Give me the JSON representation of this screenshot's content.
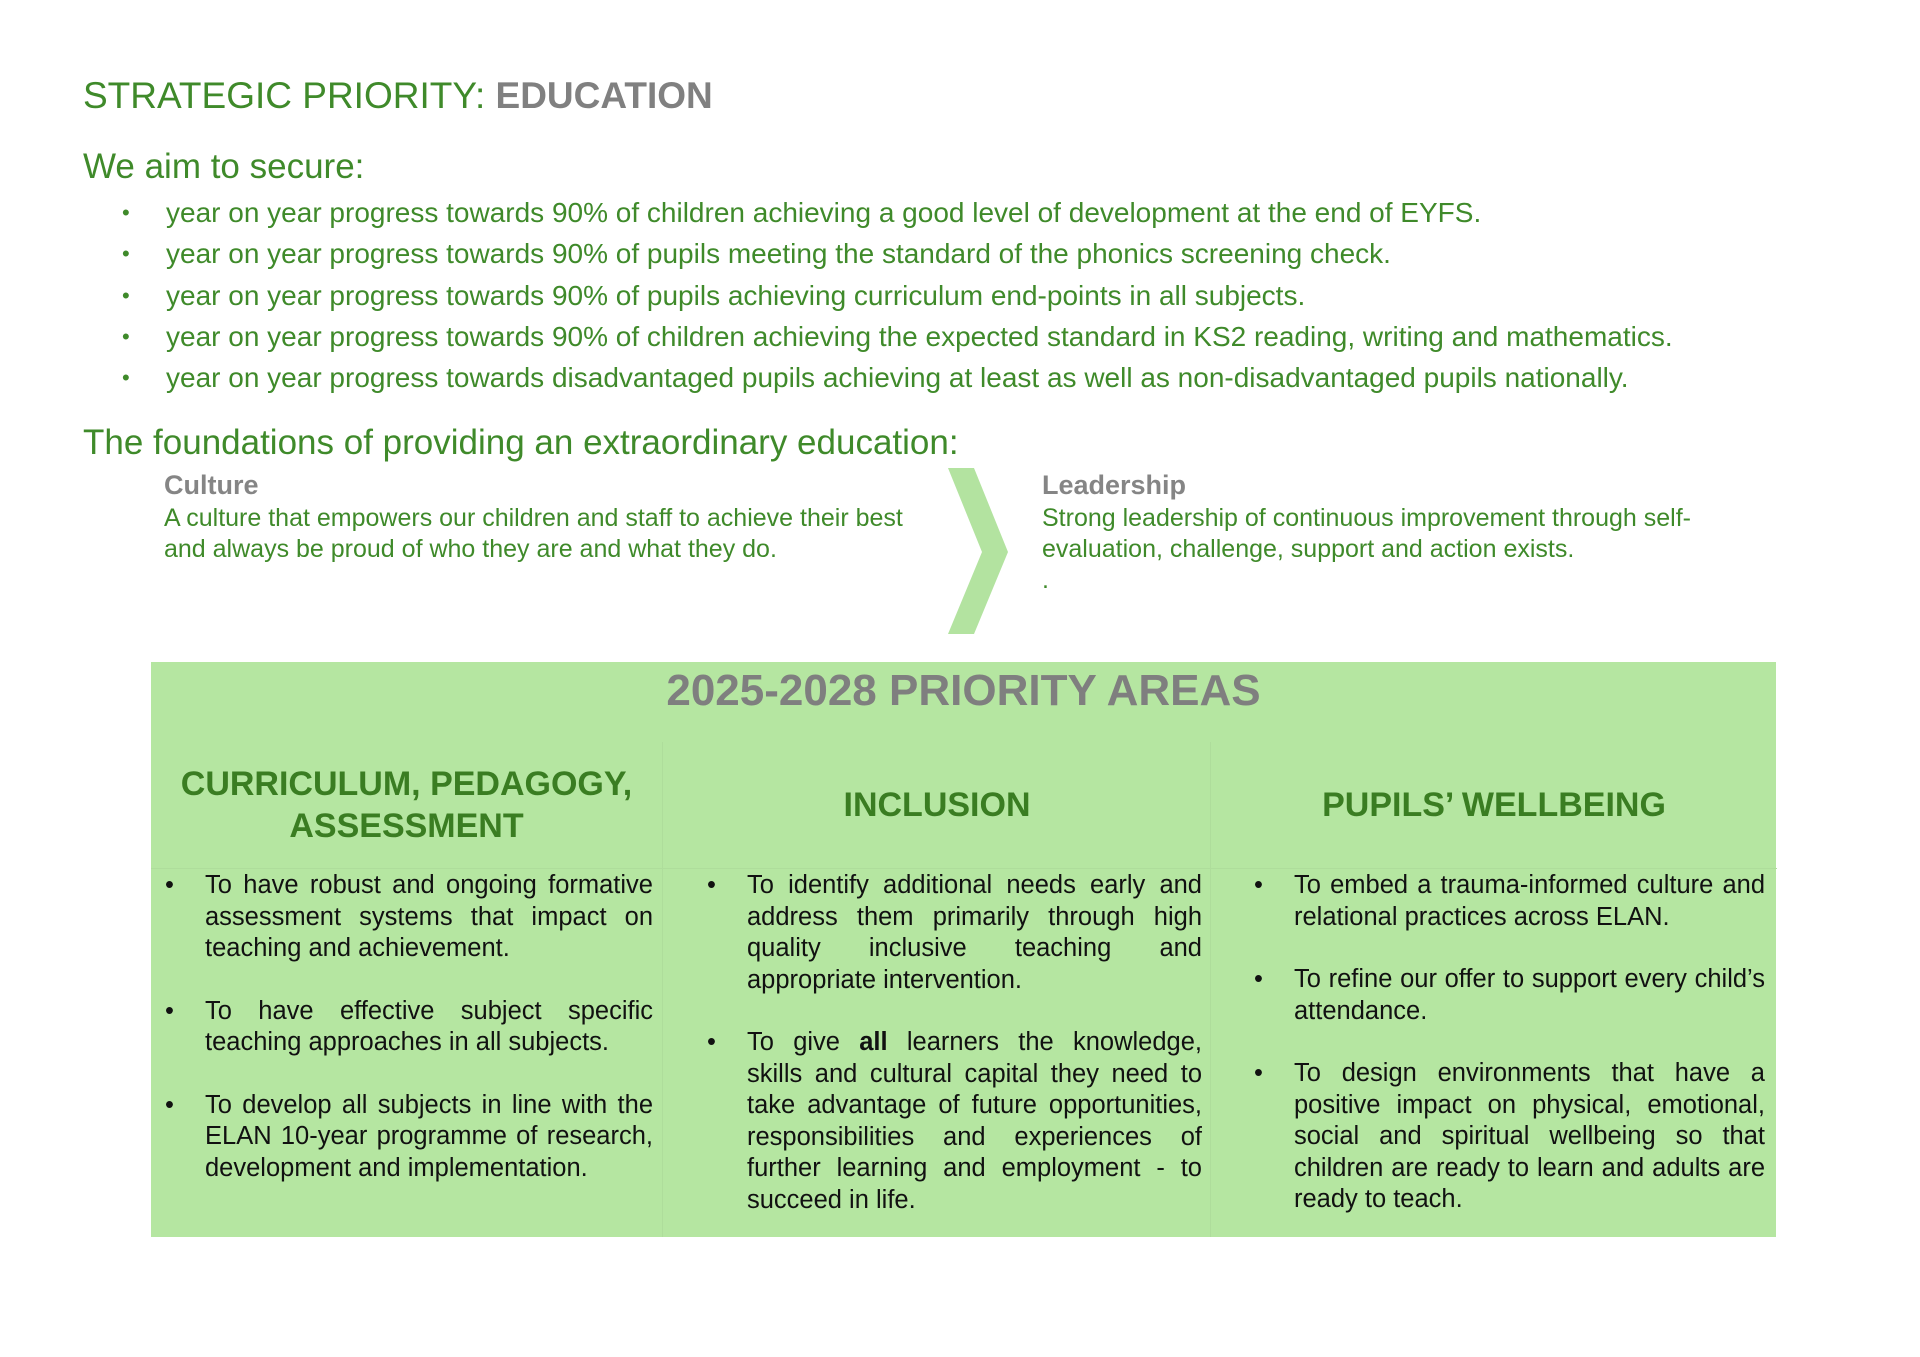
{
  "header": {
    "prefix": "STRATEGIC PRIORITY: ",
    "subject": "EDUCATION"
  },
  "aims": {
    "heading": "We aim to secure:",
    "items": [
      "year on year progress towards 90% of children achieving a good level of development at the end of EYFS.",
      "year on year progress towards 90% of pupils meeting the standard of the phonics screening check.",
      "year on year progress towards 90% of pupils achieving curriculum end-points in all subjects.",
      "year on year progress towards 90% of children achieving the expected standard in KS2 reading, writing and mathematics.",
      "year on year progress towards disadvantaged pupils achieving at least as well as non-disadvantaged pupils nationally."
    ]
  },
  "foundations": {
    "heading": "The foundations of providing an extraordinary education:",
    "culture": {
      "title": "Culture",
      "text": "A culture that empowers our children and staff to achieve their best and always be proud of who they are and what they do."
    },
    "leadership": {
      "title": "Leadership",
      "text": "Strong leadership of continuous improvement through self-evaluation, challenge, support and action exists.",
      "trailing": "."
    }
  },
  "priority_areas": {
    "title": "2025-2028 PRIORITY AREAS",
    "bullet": "•",
    "columns": [
      {
        "heading": "CURRICULUM, PEDAGOGY, ASSESSMENT",
        "items": [
          {
            "pre": "To have robust and ongoing formative assessment systems that impact on teaching and achievement.",
            "bold": "",
            "post": ""
          },
          {
            "pre": "To have effective subject specific teaching approaches in all subjects.",
            "bold": "",
            "post": ""
          },
          {
            "pre": "To develop all subjects in line with the ELAN 10-year programme of research, development and implementation.",
            "bold": "",
            "post": ""
          }
        ]
      },
      {
        "heading": "INCLUSION",
        "items": [
          {
            "pre": "To identify additional needs early and address them primarily through high quality inclusive teaching and appropriate intervention.",
            "bold": "",
            "post": ""
          },
          {
            "pre": "To give ",
            "bold": "all",
            "post": " learners the knowledge, skills and cultural capital they need to take advantage of future opportunities, responsibilities and experiences of further learning and employment - to succeed in life."
          }
        ]
      },
      {
        "heading": "PUPILS’ WELLBEING",
        "items": [
          {
            "pre": "To embed a trauma-informed culture and relational practices across ELAN.",
            "bold": "",
            "post": ""
          },
          {
            "pre": "To refine our offer to support every child’s attendance.",
            "bold": "",
            "post": ""
          },
          {
            "pre": "To design environments that have a positive impact on physical, emotional, social and spiritual wellbeing so that children are ready to learn and adults are ready to teach.",
            "bold": "",
            "post": ""
          }
        ]
      }
    ]
  },
  "colors": {
    "green_text": "#3f8a2a",
    "heading_green": "#3a7d22",
    "grey": "#808080",
    "box_fill": "#b5e6a1",
    "chevron": "#b3e3a0"
  }
}
